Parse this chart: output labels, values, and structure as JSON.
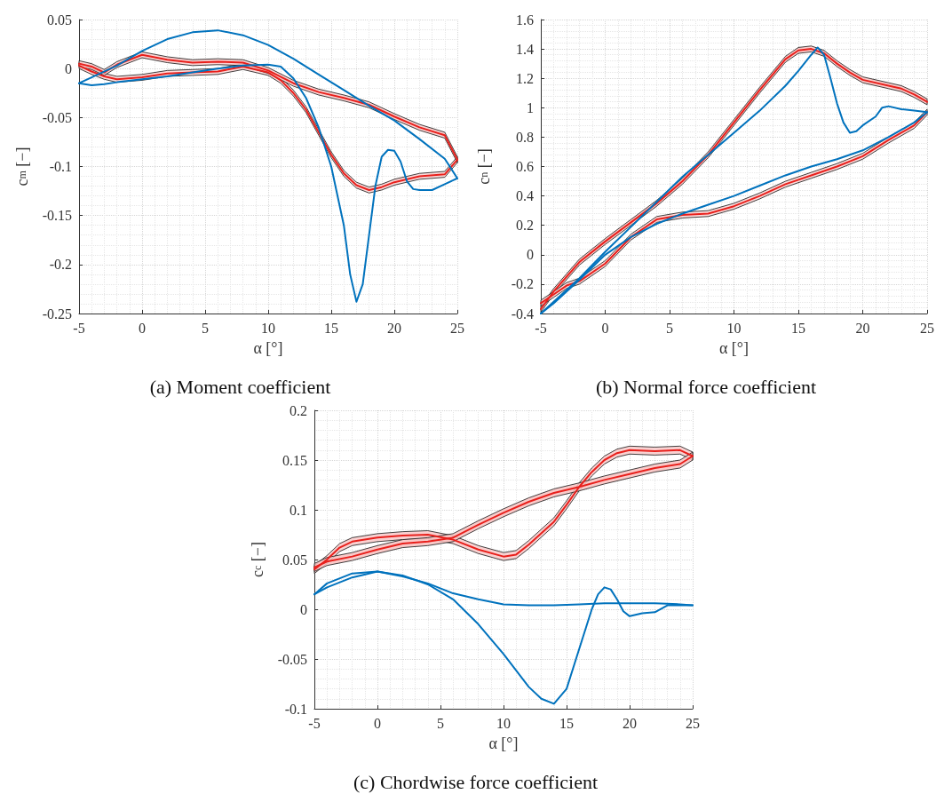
{
  "chart_data": [
    {
      "type": "line",
      "title": "(a) Moment coefficient",
      "xlabel": "α [°]",
      "ylabel": "c$_{m}$ [−]",
      "xlim": [
        -5,
        25
      ],
      "xticks": [
        -5,
        0,
        5,
        10,
        15,
        20,
        25
      ],
      "ylim": [
        -0.25,
        0.05
      ],
      "yticks": [
        -0.25,
        -0.2,
        -0.15,
        -0.1,
        -0.05,
        0,
        0.05
      ],
      "grid": true,
      "series": [
        {
          "color": "#e8201c",
          "x": [
            -5,
            -4,
            -3,
            -2,
            0,
            2,
            4,
            6,
            8,
            10,
            11,
            12,
            13,
            14,
            15,
            16,
            17,
            18,
            19,
            20,
            22,
            24,
            25
          ],
          "values": [
            0.003,
            -0.003,
            -0.008,
            -0.011,
            -0.009,
            -0.005,
            -0.004,
            -0.003,
            0.002,
            -0.004,
            -0.012,
            -0.025,
            -0.042,
            -0.065,
            -0.088,
            -0.107,
            -0.119,
            -0.124,
            -0.121,
            -0.116,
            -0.11,
            -0.108,
            -0.093
          ],
          "lower": [
            0,
            -0.006,
            -0.011,
            -0.014,
            -0.012,
            -0.008,
            -0.007,
            -0.006,
            -0.001,
            -0.007,
            -0.015,
            -0.028,
            -0.045,
            -0.068,
            -0.091,
            -0.11,
            -0.122,
            -0.127,
            -0.124,
            -0.119,
            -0.113,
            -0.111,
            -0.096
          ],
          "upper": [
            0.006,
            0,
            -0.005,
            -0.008,
            -0.006,
            -0.002,
            -0.001,
            0,
            0.005,
            -0.001,
            -0.009,
            -0.022,
            -0.039,
            -0.062,
            -0.085,
            -0.104,
            -0.116,
            -0.121,
            -0.118,
            -0.113,
            -0.107,
            -0.105,
            -0.09
          ]
        },
        {
          "color": "#e8201c",
          "x": [
            -5,
            -4,
            -3,
            -2,
            0,
            2,
            4,
            6,
            8,
            10,
            12,
            14,
            16,
            18,
            20,
            22,
            24,
            25
          ],
          "values": [
            0.005,
            0.002,
            -0.004,
            0.004,
            0.014,
            0.009,
            0.006,
            0.007,
            0.006,
            -0.002,
            -0.015,
            -0.024,
            -0.03,
            -0.037,
            -0.049,
            -0.06,
            -0.068,
            -0.093
          ],
          "lower": [
            0.002,
            -0.001,
            -0.007,
            0.001,
            0.011,
            0.006,
            0.003,
            0.004,
            0.003,
            -0.005,
            -0.018,
            -0.027,
            -0.033,
            -0.04,
            -0.052,
            -0.063,
            -0.071,
            -0.096
          ],
          "upper": [
            0.008,
            0.005,
            -0.001,
            0.007,
            0.017,
            0.012,
            0.009,
            0.01,
            0.009,
            0.001,
            -0.012,
            -0.021,
            -0.027,
            -0.034,
            -0.046,
            -0.057,
            -0.065,
            -0.09
          ]
        },
        {
          "color": "#0072bd",
          "x": [
            -5,
            -4,
            -3,
            -2,
            0,
            2,
            4,
            6,
            8,
            10,
            11,
            12,
            13,
            14,
            15,
            16,
            16.5,
            17,
            17.5,
            18,
            18.5,
            19,
            19.5,
            20,
            20.5,
            21,
            21.5,
            22,
            23,
            24,
            25
          ],
          "values": [
            -0.015,
            -0.017,
            -0.016,
            -0.014,
            -0.011,
            -0.008,
            -0.004,
            0,
            0.003,
            0.004,
            0.002,
            -0.01,
            -0.03,
            -0.06,
            -0.1,
            -0.16,
            -0.21,
            -0.238,
            -0.22,
            -0.17,
            -0.12,
            -0.09,
            -0.083,
            -0.084,
            -0.095,
            -0.115,
            -0.123,
            -0.124,
            -0.124,
            -0.118,
            -0.112
          ]
        },
        {
          "color": "#0072bd",
          "x": [
            -5,
            -4,
            -2,
            0,
            2,
            4,
            6,
            8,
            10,
            12,
            14,
            16,
            18,
            20,
            22,
            24,
            25
          ],
          "values": [
            -0.015,
            -0.009,
            0.003,
            0.018,
            0.03,
            0.037,
            0.039,
            0.034,
            0.024,
            0.01,
            -0.006,
            -0.022,
            -0.038,
            -0.053,
            -0.072,
            -0.092,
            -0.112
          ]
        }
      ]
    },
    {
      "type": "line",
      "title": "(b) Normal force coefficient",
      "xlabel": "α [°]",
      "ylabel": "c$_{n}$ [−]",
      "xlim": [
        -5,
        25
      ],
      "xticks": [
        -5,
        0,
        5,
        10,
        15,
        20,
        25
      ],
      "ylim": [
        -0.4,
        1.6
      ],
      "yticks": [
        -0.4,
        -0.2,
        0,
        0.2,
        0.4,
        0.6,
        0.8,
        1,
        1.2,
        1.4,
        1.6
      ],
      "grid": true,
      "series": [
        {
          "color": "#e8201c",
          "x": [
            -5,
            -4,
            -3,
            -2,
            0,
            2,
            4,
            6,
            8,
            10,
            12,
            14,
            15,
            16,
            17,
            18,
            19,
            20,
            22,
            23,
            24,
            25
          ],
          "values": [
            -0.37,
            -0.25,
            -0.15,
            -0.05,
            0.09,
            0.22,
            0.35,
            0.5,
            0.68,
            0.9,
            1.12,
            1.33,
            1.39,
            1.4,
            1.37,
            1.3,
            1.24,
            1.19,
            1.15,
            1.13,
            1.09,
            1.04
          ],
          "lower": [
            -0.39,
            -0.27,
            -0.17,
            -0.07,
            0.07,
            0.2,
            0.33,
            0.48,
            0.66,
            0.88,
            1.1,
            1.31,
            1.37,
            1.38,
            1.35,
            1.28,
            1.22,
            1.17,
            1.13,
            1.11,
            1.07,
            1.02
          ],
          "upper": [
            -0.35,
            -0.23,
            -0.13,
            -0.03,
            0.11,
            0.24,
            0.37,
            0.52,
            0.7,
            0.92,
            1.14,
            1.35,
            1.41,
            1.42,
            1.39,
            1.32,
            1.26,
            1.21,
            1.17,
            1.15,
            1.11,
            1.06
          ]
        },
        {
          "color": "#e8201c",
          "x": [
            -5,
            -4,
            -3,
            -2,
            0,
            2,
            4,
            6,
            8,
            10,
            12,
            14,
            16,
            18,
            20,
            22,
            24,
            25
          ],
          "values": [
            -0.33,
            -0.27,
            -0.21,
            -0.18,
            -0.06,
            0.12,
            0.24,
            0.27,
            0.28,
            0.33,
            0.4,
            0.48,
            0.54,
            0.6,
            0.67,
            0.78,
            0.88,
            0.97
          ],
          "lower": [
            -0.35,
            -0.29,
            -0.23,
            -0.2,
            -0.08,
            0.1,
            0.22,
            0.25,
            0.26,
            0.31,
            0.38,
            0.46,
            0.52,
            0.58,
            0.65,
            0.76,
            0.86,
            0.95
          ],
          "upper": [
            -0.31,
            -0.25,
            -0.19,
            -0.16,
            -0.04,
            0.14,
            0.26,
            0.29,
            0.3,
            0.35,
            0.42,
            0.5,
            0.56,
            0.62,
            0.69,
            0.8,
            0.9,
            0.99
          ]
        },
        {
          "color": "#0072bd",
          "x": [
            -5,
            -4,
            -2,
            0,
            2,
            4,
            6,
            8,
            10,
            12,
            14,
            15,
            16,
            16.5,
            17,
            17.5,
            18,
            18.5,
            19,
            19.5,
            20,
            21,
            21.5,
            22,
            23,
            24,
            25
          ],
          "values": [
            -0.4,
            -0.32,
            -0.16,
            0.02,
            0.19,
            0.36,
            0.53,
            0.68,
            0.83,
            0.98,
            1.15,
            1.25,
            1.36,
            1.41,
            1.36,
            1.2,
            1.03,
            0.9,
            0.83,
            0.84,
            0.88,
            0.94,
            1.0,
            1.01,
            0.99,
            0.98,
            0.97
          ]
        },
        {
          "color": "#0072bd",
          "x": [
            -5,
            -4,
            -2,
            0,
            2,
            4,
            6,
            8,
            10,
            12,
            14,
            16,
            18,
            20,
            22,
            24,
            25
          ],
          "values": [
            -0.4,
            -0.33,
            -0.17,
            0,
            0.12,
            0.21,
            0.28,
            0.34,
            0.4,
            0.47,
            0.54,
            0.6,
            0.65,
            0.71,
            0.8,
            0.9,
            0.97
          ]
        }
      ]
    },
    {
      "type": "line",
      "title": "(c) Chordwise force coefficient",
      "xlabel": "α [°]",
      "ylabel": "c$_{c}$ [−]",
      "xlim": [
        -5,
        25
      ],
      "xticks": [
        -5,
        0,
        5,
        10,
        15,
        20,
        25
      ],
      "ylim": [
        -0.1,
        0.2
      ],
      "yticks": [
        -0.1,
        -0.05,
        0,
        0.05,
        0.1,
        0.15,
        0.2
      ],
      "grid": true,
      "series": [
        {
          "color": "#e8201c",
          "x": [
            -5,
            -4,
            -3,
            -2,
            0,
            2,
            4,
            6,
            8,
            10,
            11,
            12,
            14,
            15,
            16,
            17,
            18,
            19,
            20,
            22,
            24,
            25
          ],
          "values": [
            0.04,
            0.05,
            0.062,
            0.068,
            0.072,
            0.074,
            0.075,
            0.07,
            0.06,
            0.053,
            0.055,
            0.065,
            0.088,
            0.105,
            0.123,
            0.138,
            0.15,
            0.157,
            0.16,
            0.159,
            0.16,
            0.154
          ],
          "lower": [
            0.036,
            0.046,
            0.058,
            0.064,
            0.068,
            0.07,
            0.071,
            0.066,
            0.056,
            0.049,
            0.051,
            0.061,
            0.084,
            0.101,
            0.119,
            0.134,
            0.146,
            0.153,
            0.156,
            0.155,
            0.156,
            0.15
          ],
          "upper": [
            0.044,
            0.054,
            0.066,
            0.072,
            0.076,
            0.078,
            0.079,
            0.074,
            0.064,
            0.057,
            0.059,
            0.069,
            0.092,
            0.109,
            0.127,
            0.142,
            0.154,
            0.161,
            0.164,
            0.163,
            0.164,
            0.158
          ]
        },
        {
          "color": "#e8201c",
          "x": [
            -5,
            -4,
            -2,
            0,
            2,
            4,
            6,
            8,
            10,
            12,
            14,
            16,
            18,
            20,
            22,
            24,
            25
          ],
          "values": [
            0.042,
            0.048,
            0.053,
            0.06,
            0.066,
            0.068,
            0.072,
            0.085,
            0.097,
            0.108,
            0.117,
            0.123,
            0.13,
            0.136,
            0.142,
            0.146,
            0.154
          ],
          "lower": [
            0.038,
            0.044,
            0.049,
            0.056,
            0.062,
            0.064,
            0.068,
            0.081,
            0.093,
            0.104,
            0.113,
            0.119,
            0.126,
            0.132,
            0.138,
            0.142,
            0.15
          ],
          "upper": [
            0.046,
            0.052,
            0.057,
            0.064,
            0.07,
            0.072,
            0.076,
            0.089,
            0.101,
            0.112,
            0.121,
            0.127,
            0.134,
            0.14,
            0.146,
            0.15,
            0.158
          ]
        },
        {
          "color": "#0072bd",
          "x": [
            -5,
            -4,
            -2,
            0,
            2,
            4,
            6,
            8,
            10,
            12,
            13,
            14,
            15,
            16,
            17,
            17.5,
            18,
            18.5,
            19,
            19.5,
            20,
            21,
            22,
            23,
            24,
            25
          ],
          "values": [
            0.015,
            0.022,
            0.032,
            0.038,
            0.034,
            0.025,
            0.01,
            -0.015,
            -0.045,
            -0.078,
            -0.09,
            -0.095,
            -0.08,
            -0.04,
            0,
            0.015,
            0.022,
            0.02,
            0.01,
            -0.002,
            -0.007,
            -0.004,
            -0.003,
            0.004,
            0.004,
            0.004
          ]
        },
        {
          "color": "#0072bd",
          "x": [
            -5,
            -4,
            -2,
            0,
            2,
            4,
            6,
            8,
            10,
            12,
            14,
            16,
            18,
            20,
            22,
            24,
            25
          ],
          "values": [
            0.015,
            0.026,
            0.036,
            0.038,
            0.033,
            0.026,
            0.016,
            0.01,
            0.005,
            0.004,
            0.004,
            0.005,
            0.006,
            0.006,
            0.006,
            0.005,
            0.004
          ]
        }
      ]
    }
  ]
}
